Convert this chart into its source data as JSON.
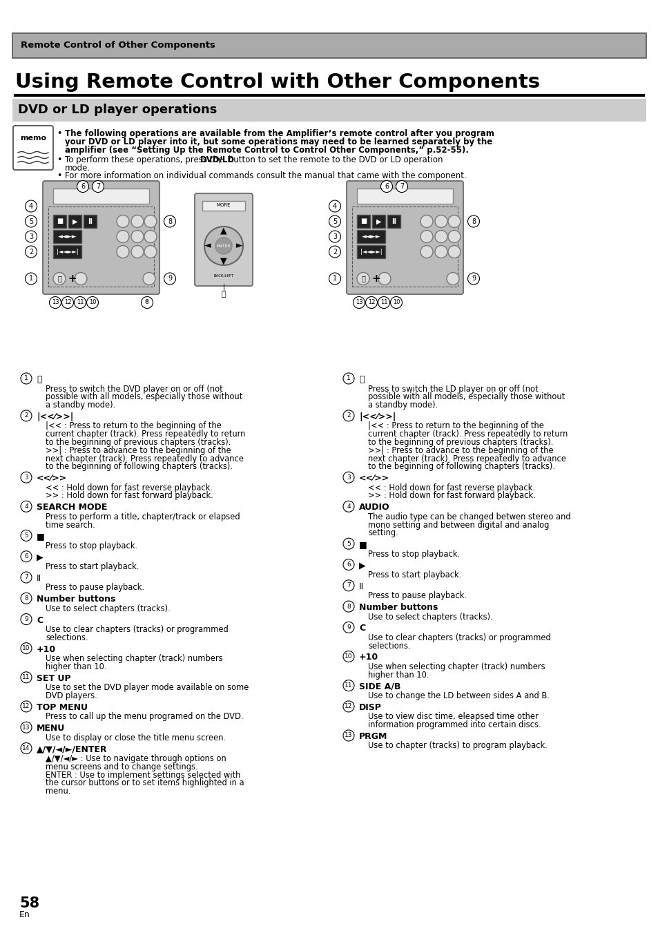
{
  "page_bg": "#ffffff",
  "header_bg": "#aaaaaa",
  "section_bg": "#cccccc",
  "header_text": "Remote Control of Other Components",
  "main_title": "Using Remote Control with Other Components",
  "section_title": "DVD or LD player operations",
  "left_items": [
    {
      "num": "1",
      "sym": "⏻",
      "sym_bold": false,
      "title": "",
      "text": "Press to switch the DVD player on or off (not\npossible with all models, especially those without\na standby mode)."
    },
    {
      "num": "2",
      "sym": "|<<⁄>>|",
      "sym_bold": true,
      "title": "",
      "text": "|<< : Press to return to the beginning of the\ncurrent chapter (track). Press repeatedly to return\nto the beginning of previous chapters (tracks).\n>>| : Press to advance to the beginning of the\nnext chapter (track). Press repeatedly to advance\nto the beginning of following chapters (tracks)."
    },
    {
      "num": "3",
      "sym": "<<⁄>>",
      "sym_bold": true,
      "title": "",
      "text": "<< : Hold down for fast reverse playback.\n>> : Hold down for fast forward playback."
    },
    {
      "num": "4",
      "sym": "",
      "sym_bold": false,
      "title": "SEARCH MODE",
      "text": "Press to perform a title, chapter/track or elapsed\ntime search."
    },
    {
      "num": "5",
      "sym": "■",
      "sym_bold": false,
      "title": "",
      "text": "Press to stop playback."
    },
    {
      "num": "6",
      "sym": "▶",
      "sym_bold": false,
      "title": "",
      "text": "Press to start playback."
    },
    {
      "num": "7",
      "sym": "II",
      "sym_bold": false,
      "title": "",
      "text": "Press to pause playback."
    },
    {
      "num": "8",
      "sym": "",
      "sym_bold": false,
      "title": "Number buttons",
      "text": "Use to select chapters (tracks)."
    },
    {
      "num": "9",
      "sym": "C",
      "sym_bold": true,
      "title": "",
      "text": "Use to clear chapters (tracks) or programmed\nselections."
    },
    {
      "num": "10",
      "sym": "+10",
      "sym_bold": true,
      "title": "",
      "text": "Use when selecting chapter (track) numbers\nhigher than 10."
    },
    {
      "num": "11",
      "sym": "",
      "sym_bold": false,
      "title": "SET UP",
      "text": "Use to set the DVD player mode available on some\nDVD players."
    },
    {
      "num": "12",
      "sym": "",
      "sym_bold": false,
      "title": "TOP MENU",
      "text": "Press to call up the menu programed on the DVD."
    },
    {
      "num": "13",
      "sym": "",
      "sym_bold": false,
      "title": "MENU",
      "text": "Use to display or close the title menu screen."
    },
    {
      "num": "14",
      "sym": "▲/▼/◄/►/ENTER",
      "sym_bold": true,
      "title": "",
      "text": "▲/▼/◄/► : Use to navigate through options on\nmenu screens and to change settings.\nENTER : Use to implement settings selected with\nthe cursor buttons or to set items highlighted in a\nmenu."
    }
  ],
  "right_items": [
    {
      "num": "1",
      "sym": "⏻",
      "sym_bold": false,
      "title": "",
      "text": "Press to switch the LD player on or off (not\npossible with all models, especially those without\na standby mode)."
    },
    {
      "num": "2",
      "sym": "|<<⁄>>|",
      "sym_bold": true,
      "title": "",
      "text": "|<< : Press to return to the beginning of the\ncurrent chapter (track). Press repeatedly to return\nto the beginning of previous chapters (tracks).\n>>| : Press to advance to the beginning of the\nnext chapter (track). Press repeatedly to advance\nto the beginning of following chapters (tracks)."
    },
    {
      "num": "3",
      "sym": "<<⁄>>",
      "sym_bold": true,
      "title": "",
      "text": "<< : Hold down for fast reverse playback.\n>> : Hold down for fast forward playback."
    },
    {
      "num": "4",
      "sym": "",
      "sym_bold": false,
      "title": "AUDIO",
      "text": "The audio type can be changed betwen stereo and\nmono setting and between digital and analog\nsetting."
    },
    {
      "num": "5",
      "sym": "■",
      "sym_bold": false,
      "title": "",
      "text": "Press to stop playback."
    },
    {
      "num": "6",
      "sym": "▶",
      "sym_bold": false,
      "title": "",
      "text": "Press to start playback."
    },
    {
      "num": "7",
      "sym": "II",
      "sym_bold": false,
      "title": "",
      "text": "Press to pause playback."
    },
    {
      "num": "8",
      "sym": "",
      "sym_bold": false,
      "title": "Number buttons",
      "text": "Use to select chapters (tracks)."
    },
    {
      "num": "9",
      "sym": "C",
      "sym_bold": true,
      "title": "",
      "text": "Use to clear chapters (tracks) or programmed\nselections."
    },
    {
      "num": "10",
      "sym": "+10",
      "sym_bold": true,
      "title": "",
      "text": "Use when selecting chapter (track) numbers\nhigher than 10."
    },
    {
      "num": "11",
      "sym": "",
      "sym_bold": false,
      "title": "SIDE A/B",
      "text": "Use to change the LD between sides A and B."
    },
    {
      "num": "12",
      "sym": "",
      "sym_bold": false,
      "title": "DISP",
      "text": "Use to view disc time, eleapsed time other\ninformation programmed into certain discs."
    },
    {
      "num": "13",
      "sym": "",
      "sym_bold": false,
      "title": "PRGM",
      "text": "Use to chapter (tracks) to program playback."
    }
  ],
  "footer_num": "58",
  "footer_lang": "En"
}
